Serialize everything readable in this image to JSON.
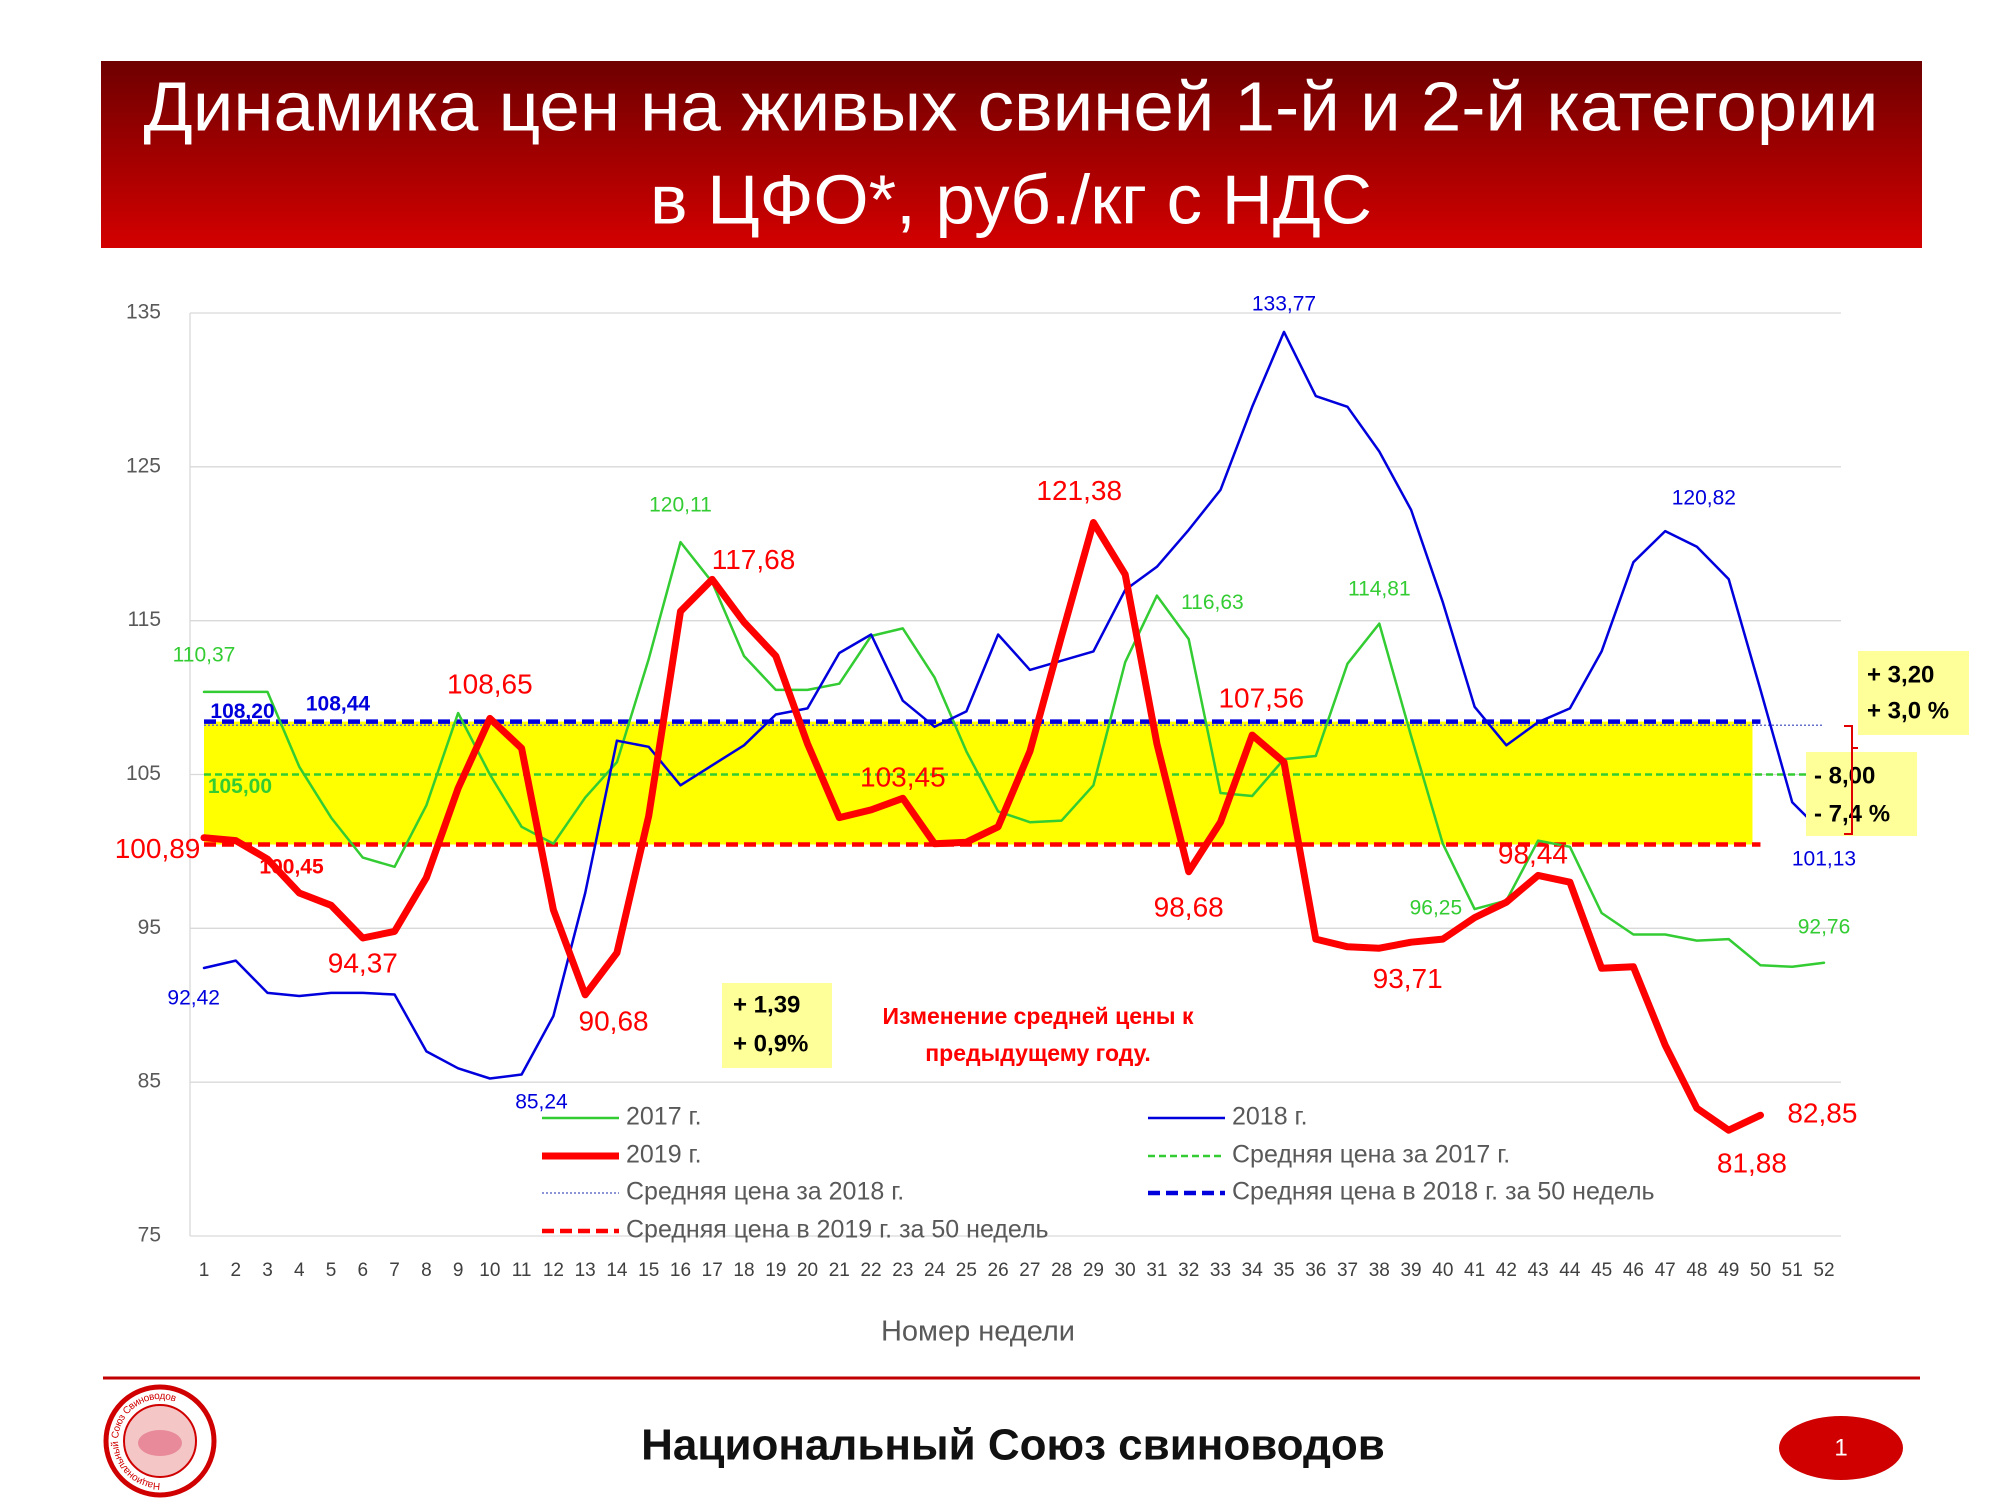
{
  "header": {
    "title_lines": [
      "Динамика цен на живых свиней 1-й и 2-й категории",
      "в ЦФО*, руб./кг с НДС"
    ]
  },
  "chart_data": {
    "type": "line",
    "x_label": "Номер недели",
    "categories": [
      "1",
      "2",
      "3",
      "4",
      "5",
      "6",
      "7",
      "8",
      "9",
      "10",
      "11",
      "12",
      "13",
      "14",
      "15",
      "16",
      "17",
      "18",
      "19",
      "20",
      "21",
      "22",
      "23",
      "24",
      "25",
      "26",
      "27",
      "28",
      "29",
      "30",
      "31",
      "32",
      "33",
      "34",
      "35",
      "36",
      "37",
      "38",
      "39",
      "40",
      "41",
      "42",
      "43",
      "44",
      "45",
      "46",
      "47",
      "48",
      "49",
      "50",
      "51",
      "52"
    ],
    "ylim": [
      75,
      135
    ],
    "yticks": [
      75,
      85,
      95,
      105,
      115,
      125,
      135
    ],
    "grid": true,
    "series": [
      {
        "name": "2017 г.",
        "color": "#33cc33",
        "width": 2.5,
        "values": [
          110.37,
          110.37,
          110.37,
          105.5,
          102.2,
          99.6,
          99.0,
          103.0,
          109.0,
          105.0,
          101.6,
          100.5,
          103.5,
          105.8,
          112.5,
          120.11,
          117.5,
          112.7,
          110.5,
          110.5,
          110.9,
          114.0,
          114.5,
          111.3,
          106.5,
          102.6,
          101.9,
          102.0,
          104.3,
          112.3,
          116.63,
          113.8,
          103.8,
          103.6,
          106.0,
          106.2,
          112.2,
          114.81,
          107.5,
          100.5,
          96.25,
          96.8,
          100.7,
          100.3,
          96.0,
          94.6,
          94.6,
          94.2,
          94.3,
          92.6,
          92.5,
          92.76
        ],
        "value_labels": [
          "110,37",
          null,
          null,
          null,
          null,
          null,
          null,
          null,
          null,
          null,
          null,
          null,
          null,
          null,
          null,
          "120,11",
          null,
          null,
          null,
          null,
          null,
          null,
          null,
          null,
          null,
          null,
          null,
          null,
          null,
          null,
          "116,63",
          null,
          null,
          null,
          null,
          null,
          null,
          "114,81",
          null,
          null,
          "96,25",
          null,
          null,
          null,
          null,
          null,
          null,
          null,
          null,
          null,
          null,
          "92,76"
        ]
      },
      {
        "name": "2018 г.",
        "color": "#0000dd",
        "width": 2.5,
        "values": [
          92.42,
          92.9,
          90.8,
          90.6,
          90.8,
          90.8,
          90.7,
          87.0,
          85.9,
          85.24,
          85.5,
          89.3,
          97.3,
          107.2,
          106.8,
          104.3,
          105.6,
          106.9,
          108.9,
          109.3,
          112.9,
          114.1,
          109.8,
          108.1,
          109.1,
          114.1,
          111.8,
          112.4,
          113.0,
          117.0,
          118.5,
          120.9,
          123.5,
          128.9,
          133.77,
          129.6,
          128.9,
          126.0,
          122.2,
          116.2,
          109.4,
          106.9,
          108.4,
          109.3,
          113.0,
          118.8,
          120.82,
          119.8,
          117.7,
          110.5,
          103.2,
          101.13
        ],
        "value_labels": [
          "92,42",
          null,
          null,
          null,
          null,
          null,
          null,
          null,
          null,
          "85,24",
          null,
          null,
          null,
          null,
          null,
          null,
          null,
          null,
          null,
          null,
          null,
          null,
          null,
          null,
          null,
          null,
          null,
          null,
          null,
          null,
          null,
          null,
          null,
          null,
          "133,77",
          null,
          null,
          null,
          null,
          null,
          null,
          null,
          null,
          null,
          null,
          null,
          "120,82",
          null,
          null,
          null,
          null,
          "101,13"
        ]
      },
      {
        "name": "2019 г.",
        "color": "#ff0000",
        "width": 7,
        "values": [
          100.89,
          100.7,
          99.5,
          97.3,
          96.5,
          94.37,
          94.8,
          98.3,
          104.1,
          108.65,
          106.7,
          96.2,
          90.68,
          93.4,
          102.3,
          115.6,
          117.68,
          114.9,
          112.7,
          107.0,
          102.2,
          102.7,
          103.45,
          100.5,
          100.6,
          101.6,
          106.5,
          114.0,
          121.38,
          118.0,
          107.0,
          98.68,
          101.9,
          107.56,
          105.8,
          94.3,
          93.8,
          93.71,
          94.1,
          94.3,
          95.7,
          96.7,
          98.44,
          98.0,
          92.4,
          92.5,
          87.4,
          83.3,
          81.88,
          82.85,
          null,
          null
        ],
        "value_labels": [
          "100,89",
          null,
          null,
          null,
          null,
          "94,37",
          null,
          null,
          null,
          "108,65",
          null,
          null,
          "90,68",
          null,
          null,
          null,
          "117,68",
          null,
          null,
          null,
          null,
          null,
          "103,45",
          null,
          null,
          null,
          null,
          null,
          "121,38",
          null,
          null,
          "98,68",
          null,
          "107,56",
          null,
          null,
          null,
          "93,71",
          null,
          null,
          null,
          null,
          "98,44",
          null,
          null,
          null,
          null,
          null,
          "81,88",
          "82,85",
          null,
          null
        ]
      }
    ],
    "reference_lines": [
      {
        "name": "Средняя цена за 2017 г.",
        "value": 105.0,
        "value_label": "105,00",
        "color": "#33cc33",
        "style": "dashed",
        "width": 2.5
      },
      {
        "name": "Средняя цена за 2018 г.",
        "value": 108.2,
        "value_label": "108,20",
        "color": "#6670cc",
        "style": "dotted",
        "width": 1.5
      },
      {
        "name": "Средняя цена в 2018 г. за 50 недель",
        "value": 108.44,
        "value_label": "108,44",
        "color": "#0000dd",
        "style": "dashed",
        "width": 4.5
      },
      {
        "name": "Средняя цена в 2019 г. за 50 недель",
        "value": 100.45,
        "value_label": "100,45",
        "color": "#ff0000",
        "style": "dashed",
        "width": 4.5
      }
    ],
    "band_color": "#ffff00",
    "annotations": [
      {
        "lines": [
          "+ 3,20",
          "+ 3,0 %"
        ]
      },
      {
        "lines": [
          "- 8,00",
          "- 7,4 %"
        ]
      },
      {
        "lines": [
          "+ 1,39",
          "+ 0,9%"
        ]
      },
      {
        "lines": [
          "Изменение средней цены к",
          "предыдущему году."
        ]
      }
    ]
  },
  "footer": {
    "organization": "Национальный Союз свиноводов",
    "page": 1,
    "logo_text": "Национальный Союз Свиноводов"
  }
}
